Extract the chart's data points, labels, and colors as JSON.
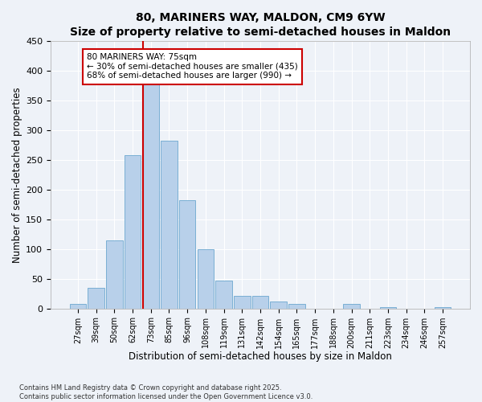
{
  "title": "80, MARINERS WAY, MALDON, CM9 6YW",
  "subtitle": "Size of property relative to semi-detached houses in Maldon",
  "xlabel": "Distribution of semi-detached houses by size in Maldon",
  "ylabel": "Number of semi-detached properties",
  "categories": [
    "27sqm",
    "39sqm",
    "50sqm",
    "62sqm",
    "73sqm",
    "85sqm",
    "96sqm",
    "108sqm",
    "119sqm",
    "131sqm",
    "142sqm",
    "154sqm",
    "165sqm",
    "177sqm",
    "188sqm",
    "200sqm",
    "211sqm",
    "223sqm",
    "234sqm",
    "246sqm",
    "257sqm"
  ],
  "values": [
    7,
    35,
    115,
    258,
    380,
    282,
    182,
    100,
    47,
    21,
    21,
    12,
    7,
    0,
    0,
    7,
    0,
    2,
    0,
    0,
    2
  ],
  "bar_color": "#b8d0ea",
  "bar_edge_color": "#7aafd4",
  "vline_color": "#cc0000",
  "vline_index": 4,
  "annotation_text": "80 MARINERS WAY: 75sqm\n← 30% of semi-detached houses are smaller (435)\n68% of semi-detached houses are larger (990) →",
  "annotation_box_facecolor": "#ffffff",
  "annotation_box_edgecolor": "#cc0000",
  "background_color": "#eef2f8",
  "grid_color": "#ffffff",
  "ylim": [
    0,
    450
  ],
  "yticks": [
    0,
    50,
    100,
    150,
    200,
    250,
    300,
    350,
    400,
    450
  ],
  "title_fontsize": 11,
  "footnote": "Contains HM Land Registry data © Crown copyright and database right 2025.\nContains public sector information licensed under the Open Government Licence v3.0."
}
